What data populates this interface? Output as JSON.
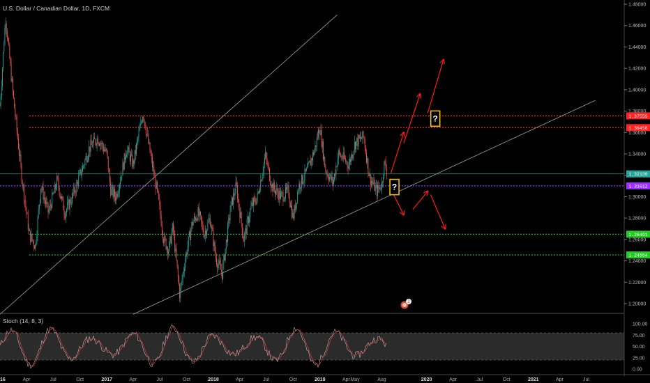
{
  "title": "U.S. Dollar / Canadian Dollar, 1D, FXCM",
  "stoch_label": "Stoch (14, 8, 3)",
  "question_mark": "?",
  "colors": {
    "background": "#000000",
    "candle_up": "#26a69a",
    "candle_down": "#ef5350",
    "resistance": "#ff2222",
    "support": "#22cc22",
    "pivot": "#9b30ff",
    "current": "#26a69a",
    "trendline": "#9aaa9a",
    "arrow": "#ff1a1a",
    "box_border": "#f0c000",
    "stoch_k": "#e0e0e0",
    "stoch_d": "#e03a3a",
    "stoch_band": "#3a3a3a"
  },
  "chart_data": {
    "type": "line",
    "symbol": "USDCAD",
    "timeframe": "1D",
    "x_tick_labels": [
      "2016",
      "Apr",
      "Jul",
      "Oct",
      "2017",
      "Apr",
      "Jul",
      "Oct",
      "2018",
      "Apr",
      "Jul",
      "Oct",
      "2019",
      "Apr",
      "May",
      "Aug",
      "2020",
      "Apr",
      "Jul",
      "Oct",
      "2021",
      "Apr",
      "Jul"
    ],
    "y_tick_labels": [
      "1.48000",
      "1.46000",
      "1.44000",
      "1.42000",
      "1.40000",
      "1.38000",
      "1.36000",
      "1.34000",
      "1.32000",
      "1.30000",
      "1.28000",
      "1.26000",
      "1.24000",
      "1.22000",
      "1.20000"
    ],
    "ylim": [
      1.19,
      1.485
    ],
    "price_path": [
      {
        "date": "2016-01-01",
        "value": 1.385
      },
      {
        "date": "2016-01-20",
        "value": 1.468
      },
      {
        "date": "2016-02-15",
        "value": 1.395
      },
      {
        "date": "2016-03-15",
        "value": 1.32
      },
      {
        "date": "2016-04-10",
        "value": 1.265
      },
      {
        "date": "2016-05-01",
        "value": 1.254
      },
      {
        "date": "2016-05-20",
        "value": 1.31
      },
      {
        "date": "2016-06-15",
        "value": 1.285
      },
      {
        "date": "2016-07-15",
        "value": 1.315
      },
      {
        "date": "2016-08-10",
        "value": 1.285
      },
      {
        "date": "2016-09-05",
        "value": 1.3
      },
      {
        "date": "2016-10-01",
        "value": 1.32
      },
      {
        "date": "2016-11-01",
        "value": 1.345
      },
      {
        "date": "2016-12-01",
        "value": 1.355
      },
      {
        "date": "2017-01-01",
        "value": 1.34
      },
      {
        "date": "2017-01-15",
        "value": 1.305
      },
      {
        "date": "2017-02-01",
        "value": 1.3
      },
      {
        "date": "2017-02-20",
        "value": 1.322
      },
      {
        "date": "2017-03-10",
        "value": 1.345
      },
      {
        "date": "2017-04-01",
        "value": 1.33
      },
      {
        "date": "2017-04-20",
        "value": 1.358
      },
      {
        "date": "2017-05-05",
        "value": 1.379
      },
      {
        "date": "2017-05-20",
        "value": 1.355
      },
      {
        "date": "2017-06-10",
        "value": 1.323
      },
      {
        "date": "2017-06-25",
        "value": 1.3
      },
      {
        "date": "2017-07-15",
        "value": 1.26
      },
      {
        "date": "2017-08-01",
        "value": 1.25
      },
      {
        "date": "2017-08-15",
        "value": 1.272
      },
      {
        "date": "2017-09-08",
        "value": 1.208
      },
      {
        "date": "2017-09-25",
        "value": 1.24
      },
      {
        "date": "2017-10-20",
        "value": 1.275
      },
      {
        "date": "2017-11-10",
        "value": 1.285
      },
      {
        "date": "2017-12-01",
        "value": 1.265
      },
      {
        "date": "2017-12-20",
        "value": 1.28
      },
      {
        "date": "2018-01-10",
        "value": 1.242
      },
      {
        "date": "2018-01-31",
        "value": 1.228
      },
      {
        "date": "2018-03-01",
        "value": 1.29
      },
      {
        "date": "2018-03-20",
        "value": 1.31
      },
      {
        "date": "2018-04-15",
        "value": 1.26
      },
      {
        "date": "2018-05-10",
        "value": 1.29
      },
      {
        "date": "2018-06-01",
        "value": 1.3
      },
      {
        "date": "2018-06-28",
        "value": 1.338
      },
      {
        "date": "2018-07-20",
        "value": 1.31
      },
      {
        "date": "2018-08-20",
        "value": 1.3
      },
      {
        "date": "2018-09-15",
        "value": 1.305
      },
      {
        "date": "2018-10-01",
        "value": 1.28
      },
      {
        "date": "2018-10-20",
        "value": 1.31
      },
      {
        "date": "2018-11-20",
        "value": 1.325
      },
      {
        "date": "2018-12-15",
        "value": 1.345
      },
      {
        "date": "2018-12-31",
        "value": 1.366
      },
      {
        "date": "2019-01-20",
        "value": 1.325
      },
      {
        "date": "2019-02-15",
        "value": 1.313
      },
      {
        "date": "2019-03-05",
        "value": 1.34
      },
      {
        "date": "2019-03-25",
        "value": 1.335
      },
      {
        "date": "2019-04-10",
        "value": 1.33
      },
      {
        "date": "2019-05-01",
        "value": 1.35
      },
      {
        "date": "2019-05-31",
        "value": 1.356
      },
      {
        "date": "2019-06-20",
        "value": 1.318
      },
      {
        "date": "2019-07-15",
        "value": 1.305
      },
      {
        "date": "2019-08-01",
        "value": 1.312
      },
      {
        "date": "2019-08-10",
        "value": 1.332
      },
      {
        "date": "2019-08-20",
        "value": 1.321
      }
    ],
    "series": [
      {
        "name": "1.37555",
        "kind": "horizontal",
        "value": 1.37555,
        "style": "dotted",
        "color": "#ff2222",
        "start": "2016-04-10"
      },
      {
        "name": "1.36458",
        "kind": "horizontal",
        "value": 1.36458,
        "style": "dotted",
        "color": "#ff2222",
        "start": "2016-04-10"
      },
      {
        "name": "1.32130",
        "kind": "horizontal",
        "value": 1.3213,
        "style": "solid",
        "color": "#26a69a",
        "start": "2016-01-01"
      },
      {
        "name": "1.31012",
        "kind": "horizontal",
        "value": 1.31012,
        "style": "dotted",
        "color": "#9b30ff",
        "start": "2016-01-01"
      },
      {
        "name": "1.26491",
        "kind": "horizontal",
        "value": 1.26491,
        "style": "dotted",
        "color": "#22cc22",
        "start": "2016-04-10"
      },
      {
        "name": "1.24554",
        "kind": "horizontal",
        "value": 1.24554,
        "style": "dotted",
        "color": "#22cc22",
        "start": "2016-04-10"
      },
      {
        "kind": "trend",
        "points": [
          {
            "date": "2016-01-01",
            "value": 1.19
          },
          {
            "date": "2019-03-01",
            "value": 1.47
          }
        ]
      },
      {
        "kind": "trend",
        "points": [
          {
            "date": "2017-04-01",
            "value": 1.19
          },
          {
            "date": "2021-08-01",
            "value": 1.39
          }
        ]
      }
    ],
    "projections": [
      {
        "from": {
          "date": "2019-09-01",
          "value": 1.322
        },
        "to": {
          "date": "2019-10-15",
          "value": 1.36
        }
      },
      {
        "from": {
          "date": "2019-10-15",
          "value": 1.35
        },
        "to": {
          "date": "2019-12-10",
          "value": 1.396
        }
      },
      {
        "from": {
          "date": "2020-01-05",
          "value": 1.378
        },
        "to": {
          "date": "2020-02-28",
          "value": 1.428
        }
      },
      {
        "from": {
          "date": "2019-09-01",
          "value": 1.307
        },
        "to": {
          "date": "2019-10-15",
          "value": 1.283
        }
      },
      {
        "from": {
          "date": "2019-11-15",
          "value": 1.288
        },
        "to": {
          "date": "2020-01-05",
          "value": 1.305
        }
      },
      {
        "from": {
          "date": "2020-01-15",
          "value": 1.302
        },
        "to": {
          "date": "2020-03-05",
          "value": 1.27
        }
      }
    ],
    "annotations": [
      {
        "text": "?",
        "date": "2019-09-12",
        "value": 1.309
      },
      {
        "text": "?",
        "date": "2020-01-30",
        "value": 1.373
      }
    ],
    "stochastic": {
      "name": "Stoch (14, 8, 3)",
      "ylim": [
        0,
        100
      ],
      "y_tick_labels": [
        "100.00",
        "75.00",
        "50.00",
        "25.00",
        "0.00"
      ],
      "band": [
        20,
        80
      ]
    }
  }
}
